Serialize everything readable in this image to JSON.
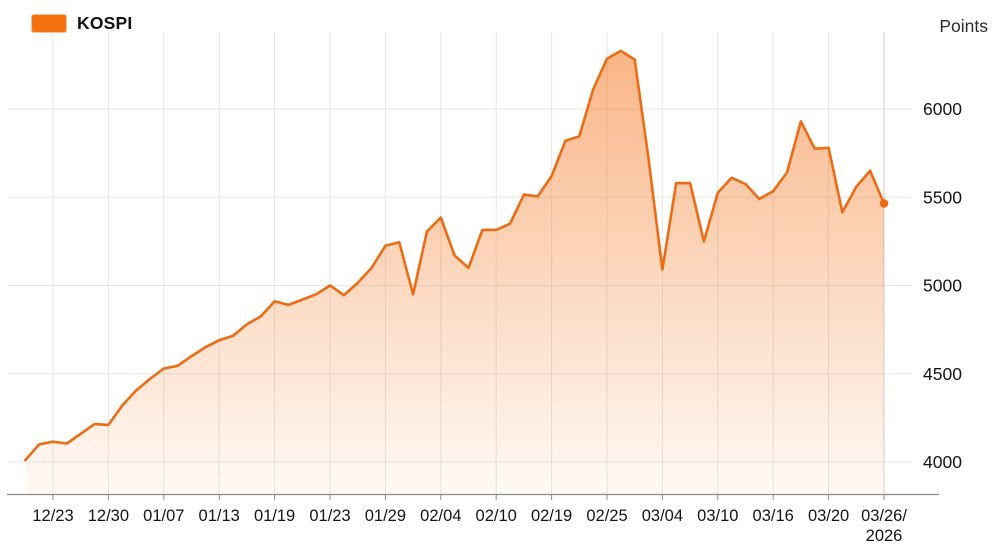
{
  "chart_data": {
    "type": "area",
    "ylabel": "Points",
    "legend": {
      "label": "KOSPI",
      "position": "top-left"
    },
    "series": [
      {
        "name": "KOSPI",
        "values": [
          4010,
          4100,
          4115,
          4105,
          4160,
          4215,
          4210,
          4320,
          4405,
          4470,
          4530,
          4545,
          4600,
          4650,
          4690,
          4715,
          4780,
          4825,
          4910,
          4890,
          4920,
          4950,
          5000,
          4945,
          5015,
          5100,
          5225,
          5245,
          4950,
          5305,
          5385,
          5170,
          5100,
          5315,
          5315,
          5350,
          5515,
          5505,
          5620,
          5820,
          5845,
          6110,
          6285,
          6330,
          6280,
          5720,
          5090,
          5580,
          5580,
          5250,
          5525,
          5610,
          5575,
          5490,
          5535,
          5640,
          5930,
          5775,
          5780,
          5415,
          5560,
          5650,
          5465
        ]
      }
    ],
    "x_tick_labels": [
      "12/23",
      "12/30",
      "01/07",
      "01/13",
      "01/19",
      "01/23",
      "01/29",
      "02/04",
      "02/10",
      "02/19",
      "02/25",
      "03/04",
      "03/10",
      "03/16",
      "03/20",
      "03/26/"
    ],
    "x_last_label_line2": "2026",
    "first_tick_offset": 2,
    "tick_every": 4,
    "y_ticks": [
      4000,
      4500,
      5000,
      5500,
      6000
    ],
    "ylim": [
      3820,
      6440
    ],
    "grid": true,
    "last_point_marker": true,
    "last_value": 5465,
    "colors": {
      "line": "#ed6c13",
      "swatch": "#f4710f",
      "swatch_border": "#fbbe8d",
      "fill_top": "rgba(243,112,21,0.52)",
      "fill_bottom": "rgba(243,112,21,0.04)",
      "grid": "#e7e7e7",
      "y_axis_line": "#cfcfcf",
      "axis": "#8a8a8a",
      "label_text": "#151515"
    }
  }
}
